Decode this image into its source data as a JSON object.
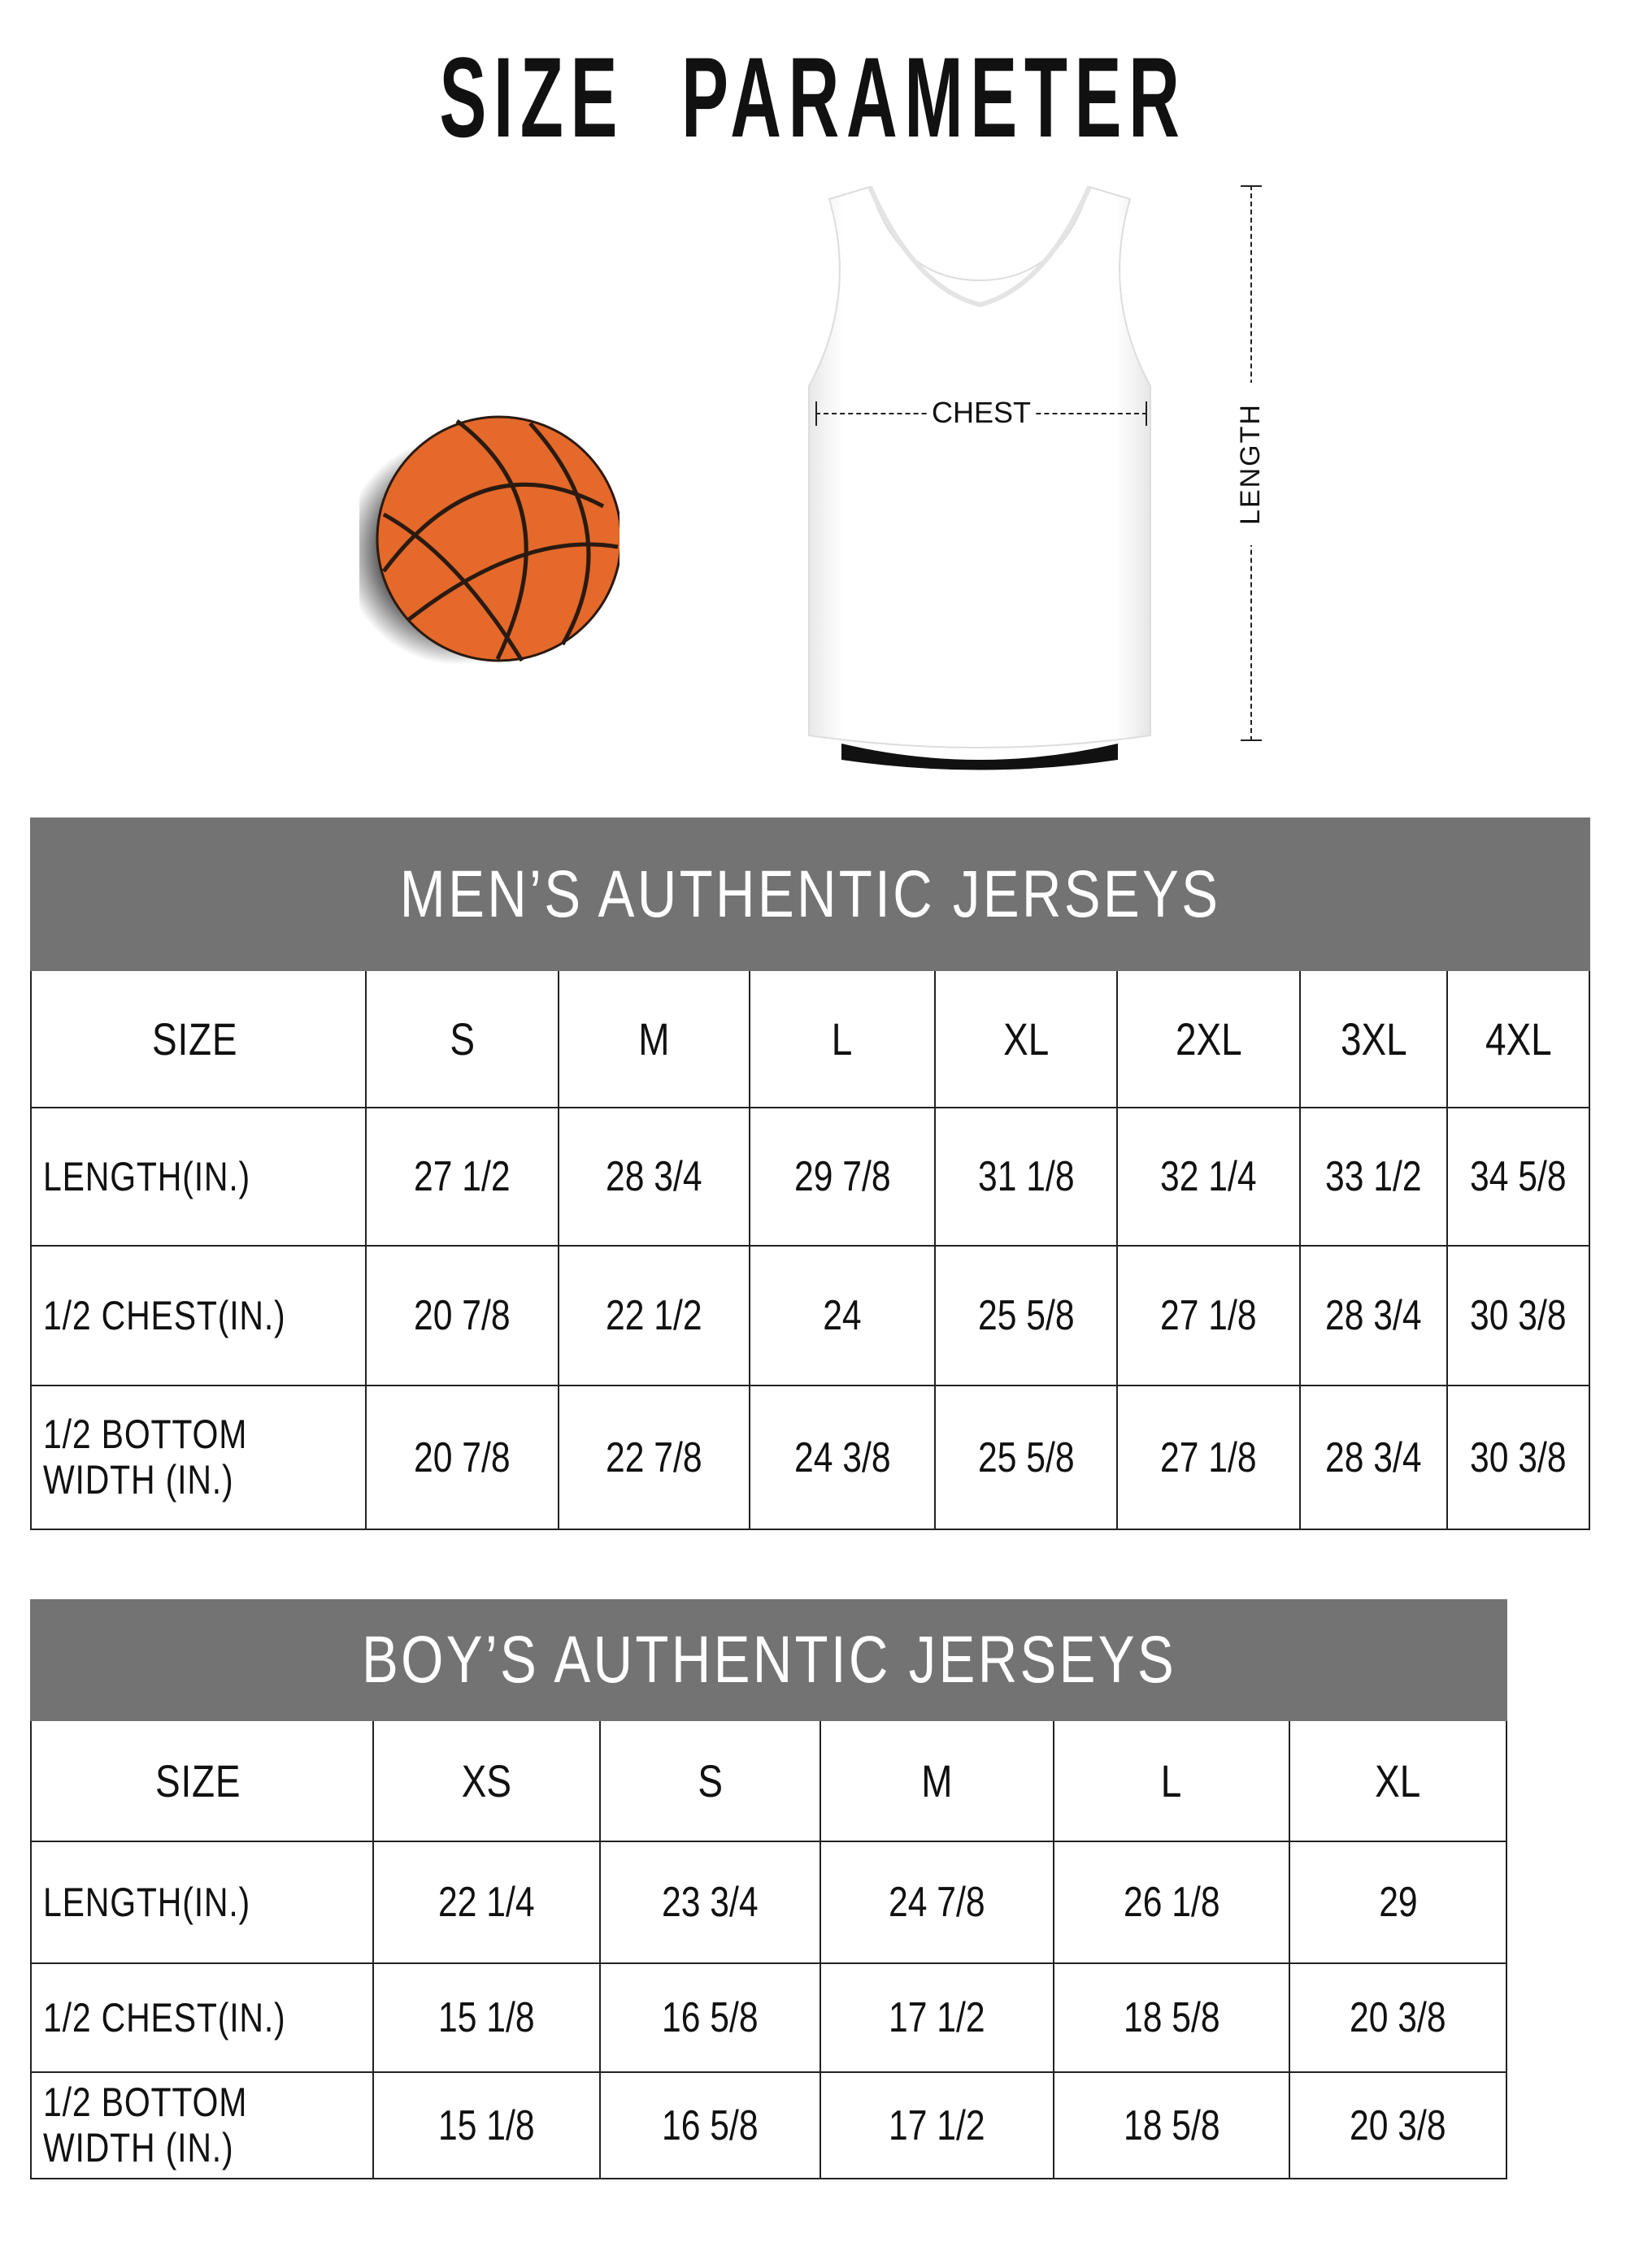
{
  "title": "SIZE PARAMETER",
  "diagram": {
    "chest_label": "CHEST",
    "length_label": "LENGTH",
    "ball_color": "#e4692a"
  },
  "header_color": "#737373",
  "mens": {
    "title": "MEN’S AUTHENTIC JERSEYS",
    "size_label": "SIZE",
    "sizes": [
      "S",
      "M",
      "L",
      "XL",
      "2XL",
      "3XL",
      "4XL"
    ],
    "rows": [
      {
        "label": "LENGTH(IN.)",
        "values": [
          "27 1/2",
          "28 3/4",
          "29 7/8",
          "31 1/8",
          "32 1/4",
          "33 1/2",
          "34 5/8"
        ]
      },
      {
        "label": "1/2 CHEST(IN.)",
        "values": [
          "20 7/8",
          "22 1/2",
          "24",
          "25 5/8",
          "27 1/8",
          "28 3/4",
          "30 3/8"
        ]
      },
      {
        "label": "1/2 BOTTOM\nWIDTH (IN.)",
        "values": [
          "20 7/8",
          "22 7/8",
          "24 3/8",
          "25 5/8",
          "27 1/8",
          "28 3/4",
          "30 3/8"
        ]
      }
    ]
  },
  "boys": {
    "title": "BOY’S AUTHENTIC JERSEYS",
    "size_label": "SIZE",
    "sizes": [
      "XS",
      "S",
      "M",
      "L",
      "XL"
    ],
    "rows": [
      {
        "label": "LENGTH(IN.)",
        "values": [
          "22 1/4",
          "23 3/4",
          "24 7/8",
          "26 1/8",
          "29"
        ]
      },
      {
        "label": "1/2 CHEST(IN.)",
        "values": [
          "15 1/8",
          "16 5/8",
          "17 1/2",
          "18 5/8",
          "20 3/8"
        ]
      },
      {
        "label": "1/2 BOTTOM\nWIDTH (IN.)",
        "values": [
          "15 1/8",
          "16 5/8",
          "17 1/2",
          "18 5/8",
          "20 3/8"
        ]
      }
    ]
  }
}
